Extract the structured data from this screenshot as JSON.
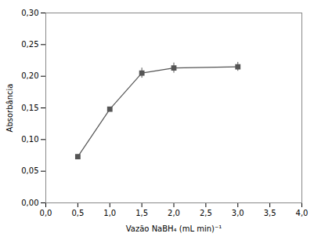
{
  "chart_data": {
    "type": "line",
    "x": [
      0.5,
      1.0,
      1.5,
      2.0,
      3.0
    ],
    "values": [
      0.073,
      0.148,
      0.205,
      0.213,
      0.215
    ],
    "yerr": [
      0.003,
      0.003,
      0.008,
      0.008,
      0.007
    ],
    "xlabel": "Vazão NaBH₄ (mL min)⁻¹",
    "ylabel": "Absorbância",
    "xlim": [
      0.0,
      4.0
    ],
    "ylim": [
      0.0,
      0.3
    ],
    "xticks": [
      {
        "value": 0.0,
        "label": "0,0"
      },
      {
        "value": 0.5,
        "label": "0,5"
      },
      {
        "value": 1.0,
        "label": "1,0"
      },
      {
        "value": 1.5,
        "label": "1,5"
      },
      {
        "value": 2.0,
        "label": "2,0"
      },
      {
        "value": 2.5,
        "label": "2,5"
      },
      {
        "value": 3.0,
        "label": "3,0"
      },
      {
        "value": 3.5,
        "label": "3,5"
      },
      {
        "value": 4.0,
        "label": "4,0"
      }
    ],
    "yticks": [
      {
        "value": 0.0,
        "label": "0,00"
      },
      {
        "value": 0.05,
        "label": "0,05"
      },
      {
        "value": 0.1,
        "label": "0,10"
      },
      {
        "value": 0.15,
        "label": "0,15"
      },
      {
        "value": 0.2,
        "label": "0,20"
      },
      {
        "value": 0.25,
        "label": "0,25"
      },
      {
        "value": 0.3,
        "label": "0,30"
      }
    ],
    "color": "#555555",
    "marker": "square",
    "line_style": "solid",
    "grid": false
  }
}
